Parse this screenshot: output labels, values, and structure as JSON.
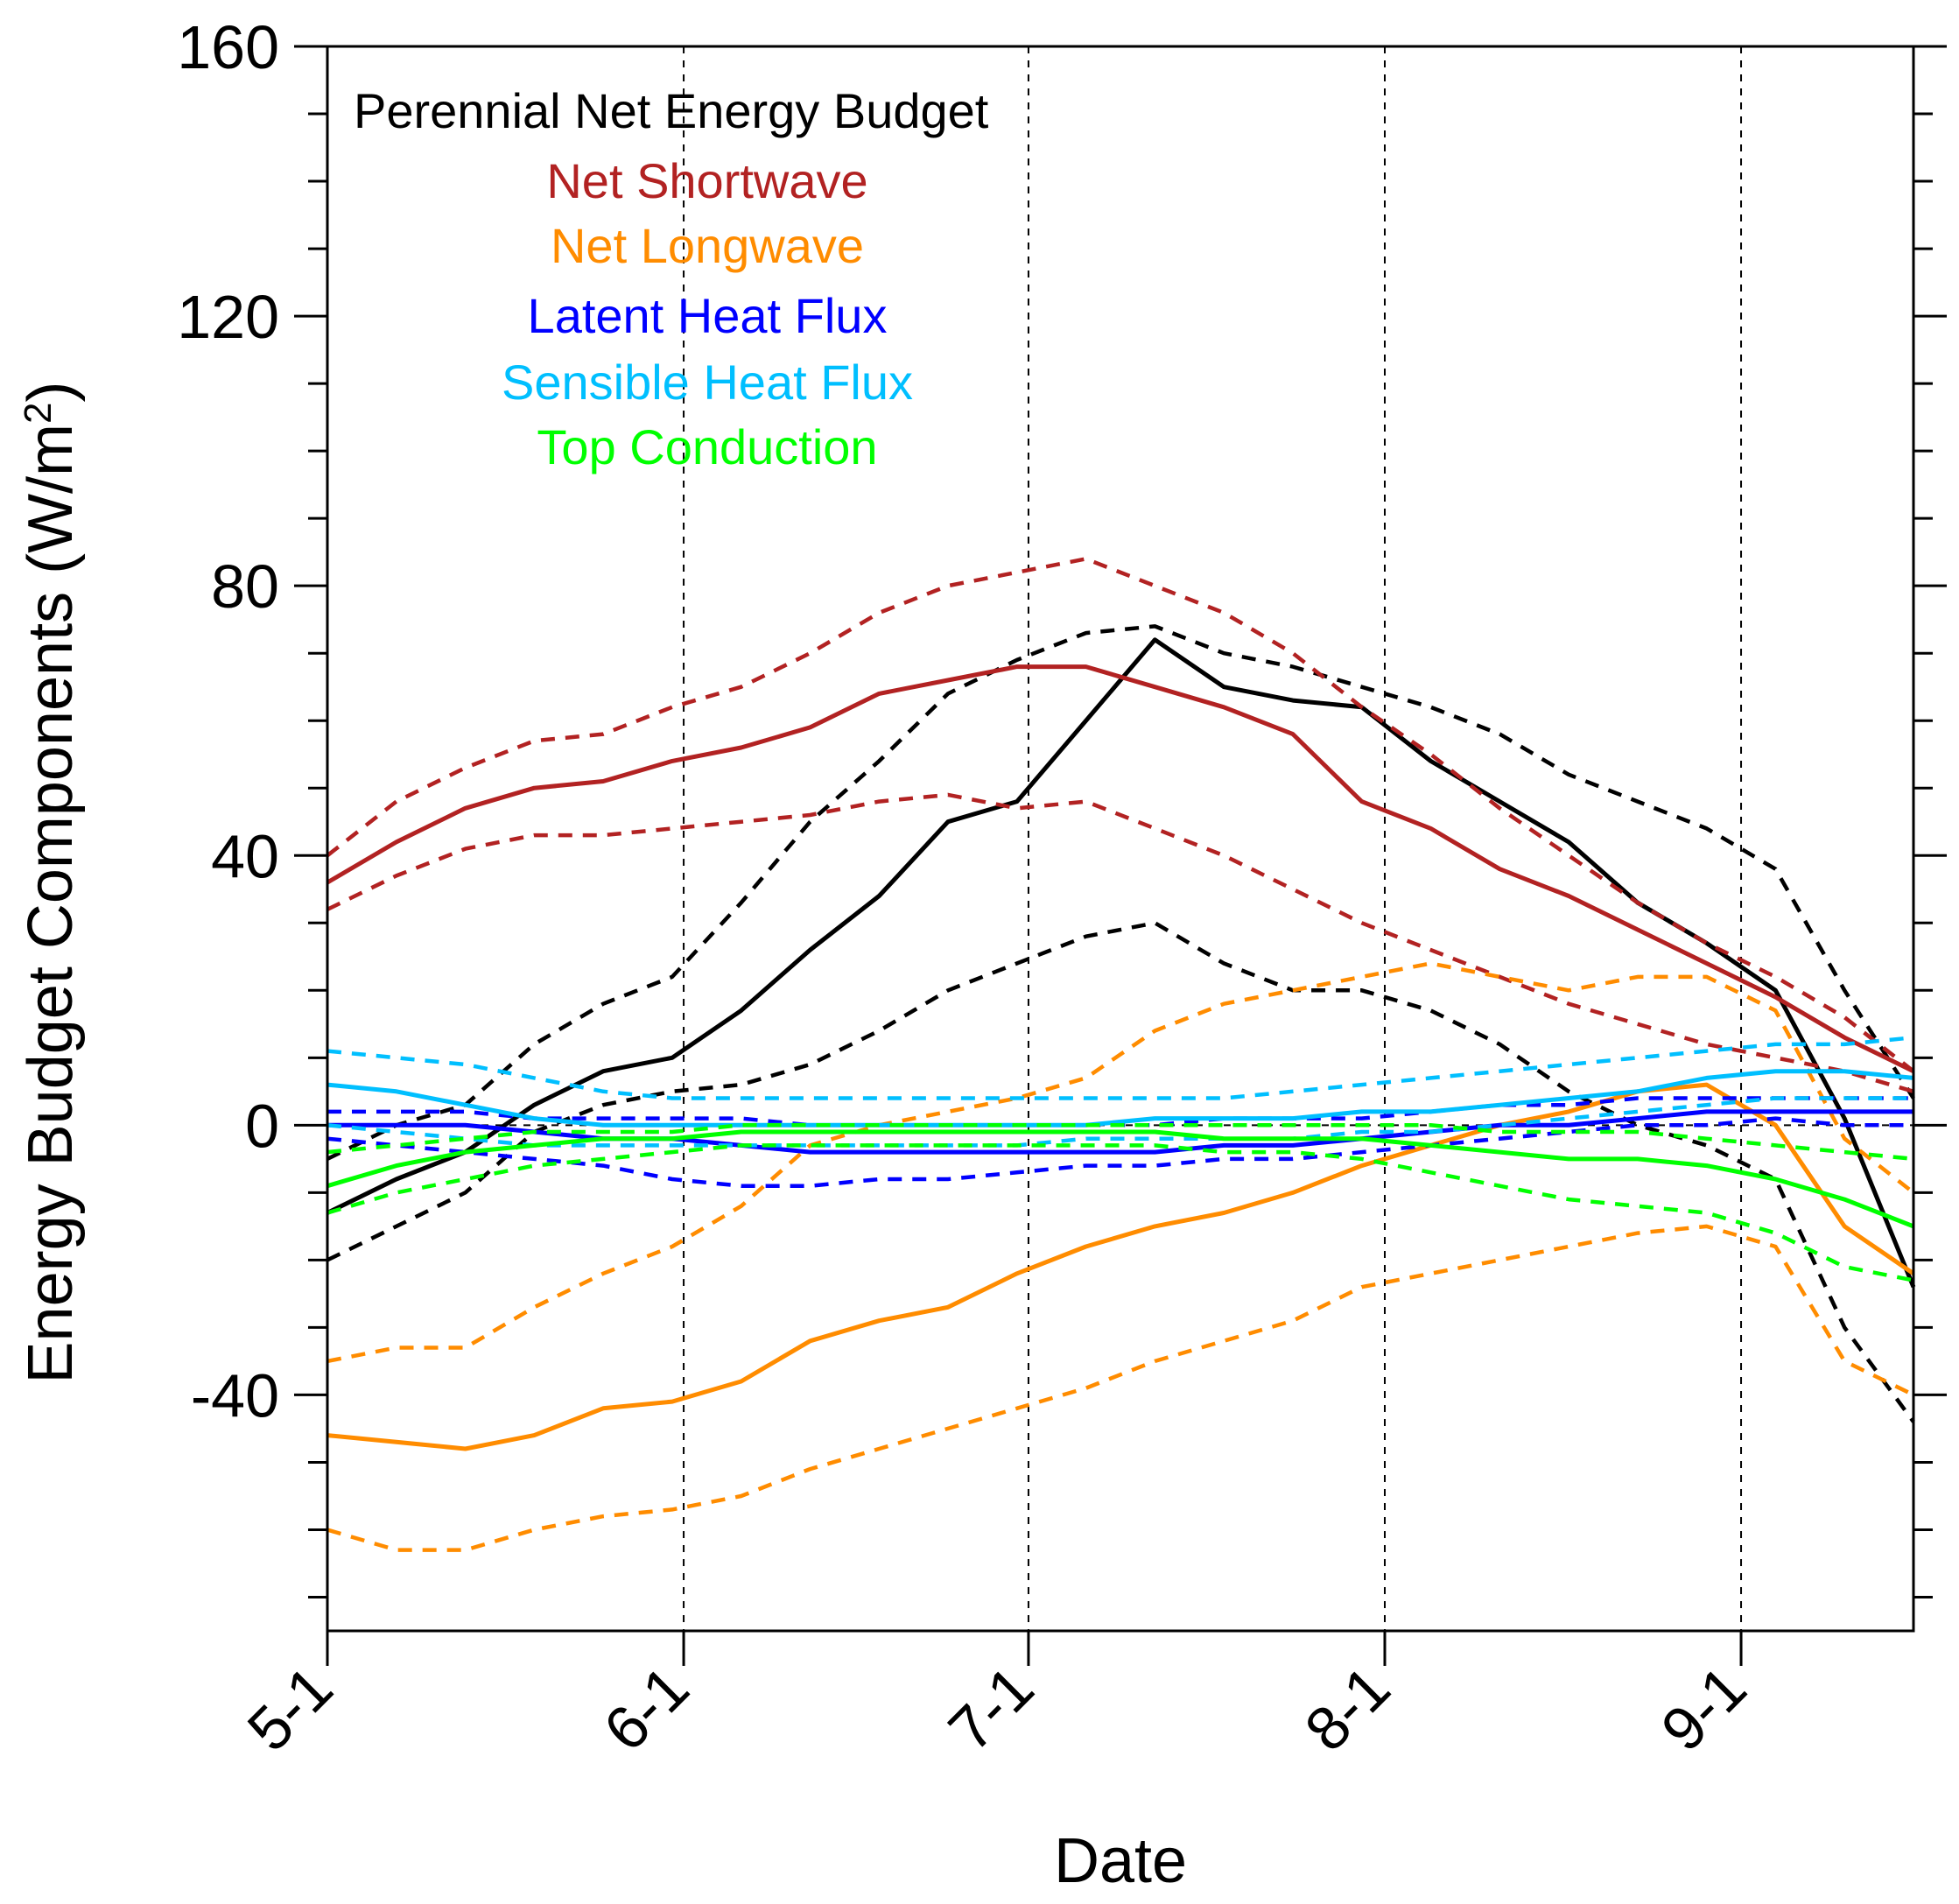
{
  "chart_data": {
    "type": "line",
    "xlabel": "Date",
    "ylabel": "Energy Budget Components (W/m",
    "ylabel_sup": "2",
    "ylabel_close": ")",
    "x_range": [
      "5-1",
      "9-16"
    ],
    "ylim": [
      -75,
      160
    ],
    "y_ticks": [
      -40,
      0,
      40,
      80,
      120,
      160
    ],
    "x_ticks": [
      {
        "day": 0,
        "label": "5-1"
      },
      {
        "day": 31,
        "label": "6-1"
      },
      {
        "day": 61,
        "label": "7-1"
      },
      {
        "day": 92,
        "label": "8-1"
      },
      {
        "day": 123,
        "label": "9-1"
      }
    ],
    "grid": "vertical dashed lines at month starts; dashed zero line",
    "legend_placement": "top-left",
    "legend": [
      {
        "label": "Perennial Net Energy Budget",
        "color": "#000000"
      },
      {
        "label": "Net Shortwave",
        "color": "#b22222"
      },
      {
        "label": "Net Longwave",
        "color": "#ff8c00"
      },
      {
        "label": "Latent Heat Flux",
        "color": "#0000ff"
      },
      {
        "label": "Sensible Heat Flux",
        "color": "#00bfff"
      },
      {
        "label": "Top Conduction",
        "color": "#00ff00"
      }
    ],
    "series": [
      {
        "name": "Perennial Net Energy Budget",
        "color": "#000000",
        "x": [
          0,
          6,
          12,
          18,
          24,
          30,
          36,
          42,
          48,
          54,
          60,
          66,
          72,
          78,
          84,
          90,
          96,
          102,
          108,
          114,
          120,
          126,
          132,
          138
        ],
        "mean": [
          -13,
          -8,
          -4,
          3,
          8,
          10,
          17,
          26,
          34,
          45,
          48,
          60,
          72,
          65,
          63,
          62,
          54,
          48,
          42,
          33,
          27,
          20,
          1,
          -24
        ],
        "low": [
          -20,
          -15,
          -10,
          -1,
          3,
          5,
          6,
          9,
          14,
          20,
          24,
          28,
          30,
          24,
          20,
          20,
          17,
          12,
          5,
          0,
          -3,
          -8,
          -30,
          -44
        ],
        "high": [
          -5,
          0,
          3,
          12,
          18,
          22,
          33,
          45,
          54,
          64,
          69,
          73,
          74,
          70,
          68,
          65,
          62,
          58,
          52,
          48,
          44,
          38,
          20,
          4
        ]
      },
      {
        "name": "Net Shortwave",
        "color": "#b22222",
        "x": [
          0,
          6,
          12,
          18,
          24,
          30,
          36,
          42,
          48,
          54,
          60,
          66,
          72,
          78,
          84,
          90,
          96,
          102,
          108,
          114,
          120,
          126,
          132,
          138
        ],
        "mean": [
          36,
          42,
          47,
          50,
          51,
          54,
          56,
          59,
          64,
          66,
          68,
          68,
          65,
          62,
          58,
          48,
          44,
          38,
          34,
          29,
          24,
          19,
          13,
          8
        ],
        "low": [
          32,
          37,
          41,
          43,
          43,
          44,
          45,
          46,
          48,
          49,
          47,
          48,
          44,
          40,
          35,
          30,
          26,
          22,
          18,
          15,
          12,
          10,
          8,
          5
        ],
        "high": [
          40,
          48,
          53,
          57,
          58,
          62,
          65,
          70,
          76,
          80,
          82,
          84,
          80,
          76,
          70,
          62,
          55,
          47,
          40,
          33,
          27,
          22,
          16,
          8
        ]
      },
      {
        "name": "Net Longwave",
        "color": "#ff8c00",
        "x": [
          0,
          6,
          12,
          18,
          24,
          30,
          36,
          42,
          48,
          54,
          60,
          66,
          72,
          78,
          84,
          90,
          96,
          102,
          108,
          114,
          120,
          126,
          132,
          138
        ],
        "mean": [
          -46,
          -47,
          -48,
          -46,
          -42,
          -41,
          -38,
          -32,
          -29,
          -27,
          -22,
          -18,
          -15,
          -13,
          -10,
          -6,
          -3,
          0,
          2,
          5,
          6,
          0,
          -15,
          -22
        ],
        "low": [
          -60,
          -63,
          -63,
          -60,
          -58,
          -57,
          -55,
          -51,
          -48,
          -45,
          -42,
          -39,
          -35,
          -32,
          -29,
          -24,
          -22,
          -20,
          -18,
          -16,
          -15,
          -18,
          -35,
          -40
        ],
        "high": [
          -35,
          -33,
          -33,
          -27,
          -22,
          -18,
          -12,
          -3,
          0,
          2,
          4,
          7,
          14,
          18,
          20,
          22,
          24,
          22,
          20,
          22,
          22,
          17,
          -2,
          -10
        ]
      },
      {
        "name": "Latent Heat Flux",
        "color": "#0000ff",
        "x": [
          0,
          6,
          12,
          18,
          24,
          30,
          36,
          42,
          48,
          54,
          60,
          66,
          72,
          78,
          84,
          90,
          96,
          102,
          108,
          114,
          120,
          126,
          132,
          138
        ],
        "mean": [
          0,
          0,
          0,
          -1,
          -2,
          -2,
          -3,
          -4,
          -4,
          -4,
          -4,
          -4,
          -4,
          -3,
          -3,
          -2,
          -1,
          0,
          0,
          1,
          2,
          2,
          2,
          2
        ],
        "low": [
          -2,
          -3,
          -4,
          -5,
          -6,
          -8,
          -9,
          -9,
          -8,
          -8,
          -7,
          -6,
          -6,
          -5,
          -5,
          -4,
          -3,
          -2,
          -1,
          0,
          0,
          1,
          0,
          0
        ],
        "high": [
          2,
          2,
          2,
          1,
          1,
          1,
          1,
          0,
          0,
          0,
          0,
          0,
          0,
          1,
          1,
          1,
          2,
          3,
          3,
          4,
          4,
          4,
          4,
          4
        ]
      },
      {
        "name": "Sensible Heat Flux",
        "color": "#00bfff",
        "x": [
          0,
          6,
          12,
          18,
          24,
          30,
          36,
          42,
          48,
          54,
          60,
          66,
          72,
          78,
          84,
          90,
          96,
          102,
          108,
          114,
          120,
          126,
          132,
          138
        ],
        "mean": [
          6,
          5,
          3,
          1,
          0,
          0,
          0,
          0,
          0,
          0,
          0,
          0,
          1,
          1,
          1,
          2,
          2,
          3,
          4,
          5,
          7,
          8,
          8,
          7
        ],
        "low": [
          0,
          -1,
          -2,
          -3,
          -3,
          -3,
          -3,
          -3,
          -3,
          -3,
          -3,
          -2,
          -2,
          -2,
          -2,
          -1,
          -1,
          0,
          1,
          2,
          3,
          4,
          4,
          4
        ],
        "high": [
          11,
          10,
          9,
          7,
          5,
          4,
          4,
          4,
          4,
          4,
          4,
          4,
          4,
          4,
          5,
          6,
          7,
          8,
          9,
          10,
          11,
          12,
          12,
          13
        ]
      },
      {
        "name": "Top Conduction",
        "color": "#00ff00",
        "x": [
          0,
          6,
          12,
          18,
          24,
          30,
          36,
          42,
          48,
          54,
          60,
          66,
          72,
          78,
          84,
          90,
          96,
          102,
          108,
          114,
          120,
          126,
          132,
          138
        ],
        "mean": [
          -9,
          -6,
          -4,
          -3,
          -2,
          -2,
          -1,
          -1,
          -1,
          -1,
          -1,
          -1,
          -1,
          -2,
          -2,
          -2,
          -3,
          -4,
          -5,
          -5,
          -6,
          -8,
          -11,
          -15
        ],
        "low": [
          -13,
          -10,
          -8,
          -6,
          -5,
          -4,
          -3,
          -3,
          -3,
          -3,
          -3,
          -3,
          -3,
          -4,
          -4,
          -5,
          -7,
          -9,
          -11,
          -12,
          -13,
          -16,
          -21,
          -23
        ],
        "high": [
          -4,
          -3,
          -2,
          -1,
          -1,
          -1,
          0,
          0,
          0,
          0,
          0,
          0,
          0,
          0,
          0,
          0,
          0,
          -1,
          -1,
          -1,
          -2,
          -3,
          -4,
          -5
        ]
      }
    ]
  }
}
